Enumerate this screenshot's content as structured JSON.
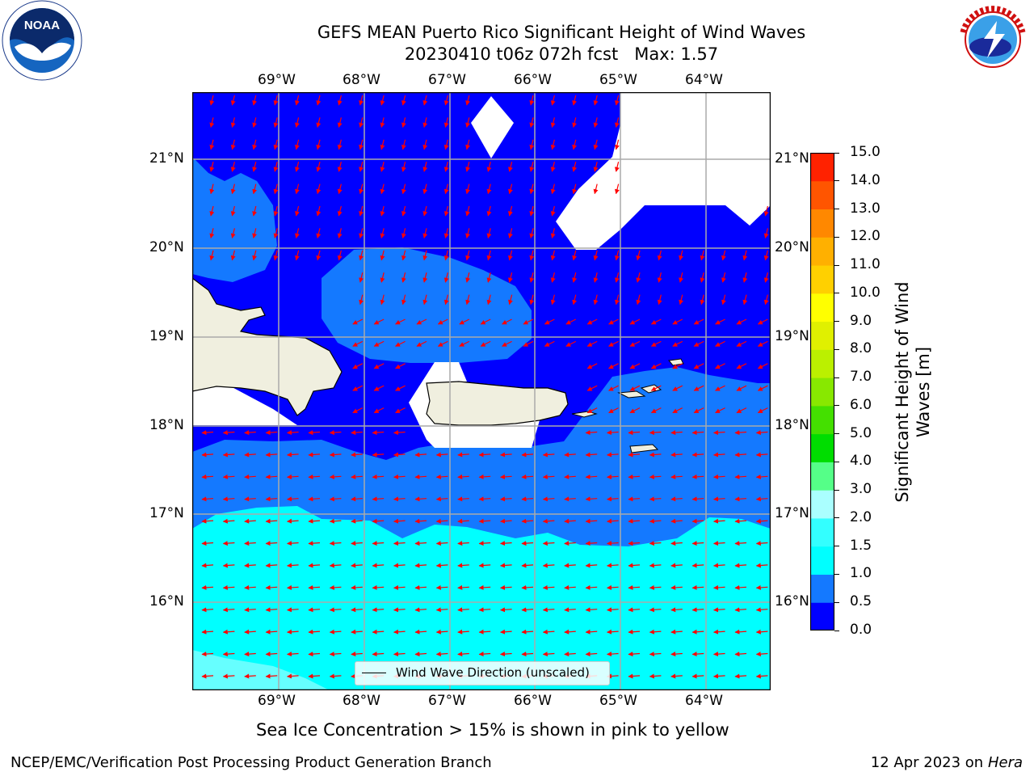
{
  "header": {
    "title_line1": "GEFS MEAN Puerto Rico Significant Height of Wind Waves",
    "title_line2": "20230410 t06z 072h fcst   Max: 1.57",
    "left_logo_text": "NOAA",
    "left_logo_ring_text": "NATIONAL OCEANIC AND ATMOSPHERIC ADMINISTRATION · U.S. DEPARTMENT OF COMMERCE",
    "right_logo_ring_text": "NATIONAL WEATHER SERVICE"
  },
  "map": {
    "lon_labels": [
      "69°W",
      "68°W",
      "67°W",
      "66°W",
      "65°W",
      "64°W"
    ],
    "lat_labels": [
      "21°N",
      "20°N",
      "19°N",
      "18°N",
      "17°N",
      "16°N"
    ],
    "legend_label": "Wind Wave Direction (unscaled)",
    "colors": {
      "band_0_0_5": "#0000ff",
      "band_0_5_1_0": "#1479ff",
      "band_1_0_1_5": "#00ffff",
      "band_1_5_2_0": "#66ffff",
      "land": "#f0efdf",
      "arrow": "#ff0000"
    }
  },
  "colorbar": {
    "label": "Significant Height of Wind Waves [m]",
    "ticks": [
      "0.0",
      "0.5",
      "1.0",
      "1.5",
      "2.0",
      "3.0",
      "4.0",
      "5.0",
      "6.0",
      "7.0",
      "8.0",
      "9.0",
      "10.0",
      "11.0",
      "12.0",
      "13.0",
      "14.0",
      "15.0"
    ],
    "colors": [
      "#0000ff",
      "#1479ff",
      "#00ffff",
      "#33ffff",
      "#aaffff",
      "#55ff88",
      "#00dd00",
      "#44e000",
      "#88e800",
      "#bbf000",
      "#e0f000",
      "#ffff00",
      "#ffd000",
      "#ffb000",
      "#ff8800",
      "#ff5500",
      "#ff2200"
    ]
  },
  "footer": {
    "ice_note": "Sea Ice Concentration > 15% is shown in pink to yellow",
    "branch": "NCEP/EMC/Verification Post Processing Product Generation Branch",
    "date": "12 Apr 2023 on",
    "host": "Hera"
  }
}
